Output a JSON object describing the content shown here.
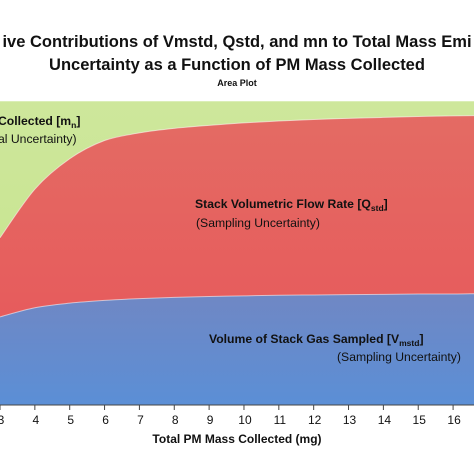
{
  "chart_data": {
    "type": "area",
    "title_lines": [
      "ive Contributions of Vmstd, Qstd, and mn to Total Mass Emi",
      "Uncertainty as a Function of PM Mass Collected"
    ],
    "subtitle": "Area Plot",
    "xlabel": "Total PM Mass Collected (mg)",
    "ylabel": "",
    "xlim": [
      3,
      16.6
    ],
    "ylim": [
      0,
      100
    ],
    "x_ticks": [
      "3",
      "4",
      "5",
      "6",
      "7",
      "8",
      "9",
      "10",
      "11",
      "12",
      "13",
      "14",
      "15",
      "16"
    ],
    "series": [
      {
        "name": "Volume of Stack Gas Sampled [Vmstd]",
        "label_main": "Volume of Stack Gas Sampled [V",
        "label_sub_script": "mstd",
        "label_close": "]",
        "label_note": "(Sampling Uncertainty)",
        "color": "#5b8fd6",
        "x": [
          3,
          4,
          5,
          6,
          7,
          8,
          9,
          10,
          11,
          12,
          13,
          14,
          15,
          16,
          16.6
        ],
        "upper": [
          29,
          32,
          33.5,
          34.4,
          35,
          35.4,
          35.7,
          35.9,
          36.1,
          36.2,
          36.3,
          36.4,
          36.5,
          36.5,
          36.6
        ]
      },
      {
        "name": "Stack Volumetric Flow Rate [Qstd]",
        "label_main": "Stack Volumetric Flow Rate [Q",
        "label_sub_script": "std",
        "label_close": "]",
        "label_note": "(Sampling Uncertainty)",
        "color": "#e8555a",
        "x": [
          3,
          4,
          5,
          6,
          7,
          8,
          9,
          10,
          11,
          12,
          13,
          14,
          15,
          16,
          16.6
        ],
        "upper": [
          55,
          71,
          81,
          87,
          89.5,
          91,
          92,
          92.8,
          93.4,
          93.9,
          94.3,
          94.6,
          94.9,
          95.1,
          95.2
        ]
      },
      {
        "name": "Collected [mn]",
        "label_main": "Collected [m",
        "label_sub_script": "n",
        "label_close": "]",
        "label_note": "al Uncertainty)",
        "color": "#c5e38a",
        "x": [
          3,
          16.6
        ],
        "upper": [
          100,
          100
        ]
      }
    ]
  }
}
